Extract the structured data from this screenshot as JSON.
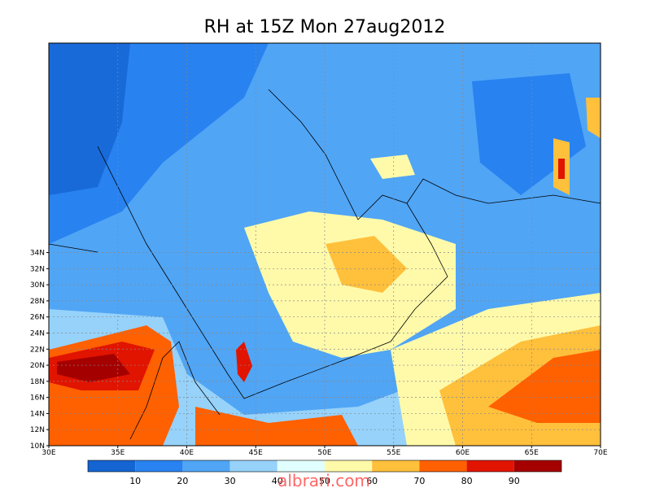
{
  "title": "RH at 15Z Mon 27aug2012",
  "x_labels": [
    "30E",
    "35E",
    "40E",
    "45E",
    "50E",
    "55E",
    "60E",
    "65E",
    "70E"
  ],
  "y_labels": [
    "10N",
    "12N",
    "14N",
    "16N",
    "18N",
    "20N",
    "22N",
    "24N",
    "26N",
    "28N",
    "30N",
    "32N",
    "34N"
  ],
  "colorbar": {
    "colors": [
      "#1464d2",
      "#2882f0",
      "#50a5f5",
      "#96d2fa",
      "#e1ffff",
      "#fffaaa",
      "#ffc03c",
      "#ff6000",
      "#e11400",
      "#a50000"
    ],
    "labels": [
      "10",
      "20",
      "30",
      "40",
      "50",
      "60",
      "70",
      "80",
      "90"
    ]
  },
  "watermark": "albrari.com"
}
